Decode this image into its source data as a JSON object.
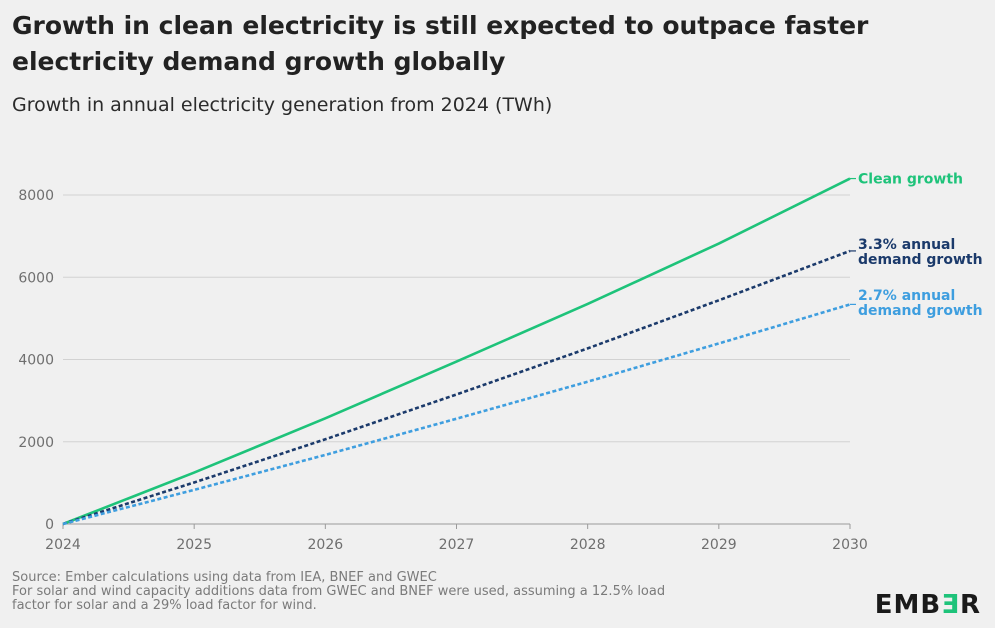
{
  "header": {
    "title": "Growth in clean electricity is still expected to outpace faster electricity demand growth globally",
    "subtitle": "Growth in annual electricity generation from 2024 (TWh)"
  },
  "chart_data": {
    "type": "line",
    "x": [
      2024,
      2025,
      2026,
      2027,
      2028,
      2029,
      2030
    ],
    "x_tick_labels": [
      "2024",
      "2025",
      "2026",
      "2027",
      "2028",
      "2029",
      "2030"
    ],
    "y_ticks": [
      0,
      2000,
      4000,
      6000,
      8000
    ],
    "y_tick_labels": [
      "0",
      "2000",
      "4000",
      "6000",
      "8000"
    ],
    "xlim": [
      2024,
      2030
    ],
    "ylim": [
      0,
      8000
    ],
    "grid": "horizontal",
    "series": [
      {
        "name": "Clean growth",
        "label_lines": [
          "Clean growth"
        ],
        "color": "#1ec37a",
        "style": "solid",
        "values": [
          0,
          1250,
          2570,
          3950,
          5350,
          6820,
          8400
        ]
      },
      {
        "name": "3.3% annual demand growth",
        "label_lines": [
          "3.3% annual",
          "demand growth"
        ],
        "color": "#1b3a6b",
        "style": "dashed",
        "values": [
          0,
          1010,
          2060,
          3150,
          4270,
          5440,
          6640
        ]
      },
      {
        "name": "2.7% annual demand growth",
        "label_lines": [
          "2.7% annual",
          "demand growth"
        ],
        "color": "#3e9edf",
        "style": "dashed",
        "values": [
          0,
          830,
          1680,
          2560,
          3460,
          4390,
          5340
        ]
      }
    ]
  },
  "footnote": {
    "line1": "Source: Ember calculations using data from IEA, BNEF and GWEC",
    "line2": "For solar and wind capacity additions data from GWEC and BNEF were used, assuming a 12.5% load",
    "line3": "factor for solar and a 29% load factor for wind."
  },
  "logo": {
    "text_before": "EMB",
    "accent": "Ǝ",
    "text_after": "R",
    "accent_color": "#1ec37a"
  }
}
